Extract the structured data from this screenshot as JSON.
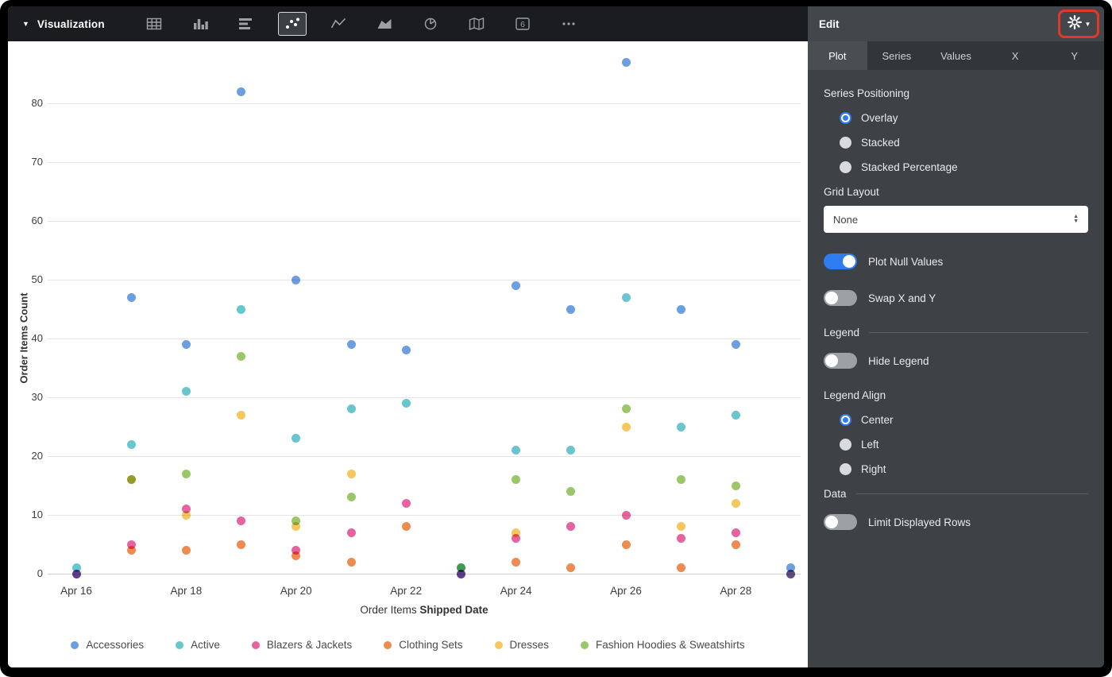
{
  "toolbar": {
    "title": "Visualization",
    "single_value_glyph": "6"
  },
  "panel": {
    "title": "Edit",
    "tabs": [
      {
        "label": "Plot",
        "active": true
      },
      {
        "label": "Series",
        "active": false
      },
      {
        "label": "Values",
        "active": false
      },
      {
        "label": "X",
        "active": false
      },
      {
        "label": "Y",
        "active": false
      }
    ],
    "series_positioning": {
      "label": "Series Positioning",
      "options": [
        {
          "label": "Overlay",
          "selected": true
        },
        {
          "label": "Stacked",
          "selected": false
        },
        {
          "label": "Stacked Percentage",
          "selected": false
        }
      ]
    },
    "grid_layout": {
      "label": "Grid Layout",
      "value": "None"
    },
    "plot_null_values": {
      "label": "Plot Null Values",
      "on": true
    },
    "swap_x_y": {
      "label": "Swap X and Y",
      "on": false
    },
    "legend_section": {
      "label": "Legend",
      "hide_legend": {
        "label": "Hide Legend",
        "on": false
      },
      "legend_align": {
        "label": "Legend Align",
        "options": [
          {
            "label": "Center",
            "selected": true
          },
          {
            "label": "Left",
            "selected": false
          },
          {
            "label": "Right",
            "selected": false
          }
        ]
      }
    },
    "data_section": {
      "label": "Data",
      "limit_rows": {
        "label": "Limit Displayed Rows",
        "on": false
      }
    }
  },
  "chart_data": {
    "type": "scatter",
    "ylabel": "Order Items Count",
    "xlabel_prefix": "Order Items",
    "xlabel_bold": "Shipped Date",
    "ylim": [
      0,
      90
    ],
    "yticks": [
      0,
      10,
      20,
      30,
      40,
      50,
      60,
      70,
      80
    ],
    "x_day_range": [
      16,
      29
    ],
    "x_ticks": [
      {
        "day": 16,
        "label": "Apr 16"
      },
      {
        "day": 18,
        "label": "Apr 18"
      },
      {
        "day": 20,
        "label": "Apr 20"
      },
      {
        "day": 22,
        "label": "Apr 22"
      },
      {
        "day": 24,
        "label": "Apr 24"
      },
      {
        "day": 26,
        "label": "Apr 26"
      },
      {
        "day": 28,
        "label": "Apr 28"
      }
    ],
    "grid": true,
    "legend_position": "bottom",
    "series": [
      {
        "name": "Accessories",
        "color": "#6b9fe2",
        "points": [
          [
            16,
            0
          ],
          [
            17,
            47
          ],
          [
            18,
            39
          ],
          [
            19,
            82
          ],
          [
            20,
            50
          ],
          [
            21,
            39
          ],
          [
            22,
            38
          ],
          [
            23,
            0
          ],
          [
            24,
            49
          ],
          [
            25,
            45
          ],
          [
            26,
            87
          ],
          [
            27,
            45
          ],
          [
            28,
            39
          ],
          [
            29,
            1
          ]
        ]
      },
      {
        "name": "Active",
        "color": "#67c6ce",
        "points": [
          [
            16,
            1
          ],
          [
            17,
            22
          ],
          [
            18,
            31
          ],
          [
            19,
            45
          ],
          [
            20,
            23
          ],
          [
            21,
            28
          ],
          [
            22,
            29
          ],
          [
            23,
            1
          ],
          [
            24,
            21
          ],
          [
            25,
            21
          ],
          [
            26,
            47
          ],
          [
            27,
            25
          ],
          [
            28,
            27
          ],
          [
            29,
            0
          ]
        ]
      },
      {
        "name": "Blazers & Jackets",
        "color": "#e7639f",
        "points": [
          [
            16,
            0
          ],
          [
            17,
            5
          ],
          [
            18,
            11
          ],
          [
            19,
            9
          ],
          [
            20,
            4
          ],
          [
            21,
            7
          ],
          [
            22,
            12
          ],
          [
            23,
            0
          ],
          [
            24,
            6
          ],
          [
            25,
            8
          ],
          [
            26,
            10
          ],
          [
            27,
            6
          ],
          [
            28,
            7
          ],
          [
            29,
            0
          ]
        ]
      },
      {
        "name": "Clothing Sets",
        "color": "#ee8b51",
        "points": [
          [
            17,
            4
          ],
          [
            18,
            4
          ],
          [
            19,
            5
          ],
          [
            20,
            3
          ],
          [
            21,
            2
          ],
          [
            22,
            8
          ],
          [
            24,
            2
          ],
          [
            25,
            1
          ],
          [
            26,
            5
          ],
          [
            27,
            1
          ],
          [
            28,
            5
          ]
        ]
      },
      {
        "name": "Dresses",
        "color": "#f5c75c",
        "points": [
          [
            17,
            16
          ],
          [
            18,
            10
          ],
          [
            19,
            27
          ],
          [
            20,
            8
          ],
          [
            21,
            17
          ],
          [
            24,
            7
          ],
          [
            26,
            25
          ],
          [
            27,
            8
          ],
          [
            28,
            12
          ]
        ]
      },
      {
        "name": "Fashion Hoodies & Sweatshirts",
        "color": "#9cc768",
        "points": [
          [
            17,
            16
          ],
          [
            18,
            17
          ],
          [
            19,
            37
          ],
          [
            20,
            9
          ],
          [
            21,
            13
          ],
          [
            23,
            1
          ],
          [
            24,
            16
          ],
          [
            25,
            14
          ],
          [
            26,
            28
          ],
          [
            27,
            16
          ],
          [
            28,
            15
          ]
        ]
      }
    ]
  }
}
